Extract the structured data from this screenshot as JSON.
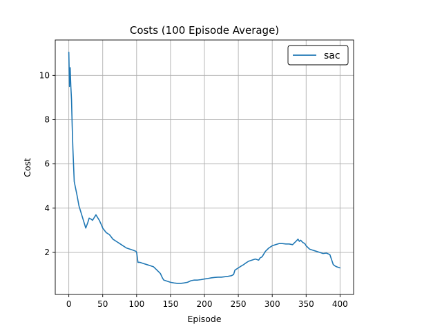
{
  "chart_data": {
    "type": "line",
    "title": "Costs (100 Episode Average)",
    "xlabel": "Episode",
    "ylabel": "Cost",
    "xlim": [
      -20,
      420
    ],
    "ylim": [
      0.1,
      11.6
    ],
    "xticks": [
      0,
      50,
      100,
      150,
      200,
      250,
      300,
      350,
      400
    ],
    "yticks": [
      2,
      4,
      6,
      8,
      10
    ],
    "grid": true,
    "legend_position": "top-right",
    "series": [
      {
        "name": "sac",
        "color": "#1f77b4",
        "x": [
          0,
          1,
          2,
          3,
          4,
          5,
          6,
          8,
          10,
          12,
          15,
          18,
          20,
          23,
          25,
          28,
          30,
          33,
          35,
          38,
          40,
          43,
          45,
          48,
          50,
          55,
          60,
          65,
          70,
          75,
          80,
          85,
          90,
          95,
          99,
          100,
          102,
          105,
          110,
          115,
          120,
          125,
          130,
          135,
          138,
          140,
          145,
          150,
          155,
          160,
          165,
          170,
          175,
          180,
          185,
          190,
          195,
          200,
          205,
          210,
          215,
          220,
          225,
          230,
          235,
          240,
          243,
          245,
          250,
          255,
          258,
          260,
          265,
          270,
          275,
          280,
          282,
          285,
          290,
          295,
          300,
          305,
          310,
          315,
          320,
          325,
          330,
          335,
          338,
          340,
          342,
          345,
          348,
          350,
          355,
          360,
          365,
          370,
          375,
          380,
          385,
          390,
          392,
          395,
          400
        ],
        "y": [
          11.05,
          9.5,
          10.35,
          9.5,
          8.9,
          7.7,
          6.7,
          5.2,
          4.9,
          4.6,
          4.1,
          3.8,
          3.6,
          3.3,
          3.1,
          3.35,
          3.55,
          3.5,
          3.45,
          3.6,
          3.7,
          3.55,
          3.45,
          3.25,
          3.1,
          2.9,
          2.8,
          2.6,
          2.5,
          2.4,
          2.3,
          2.2,
          2.15,
          2.1,
          2.05,
          2.0,
          1.55,
          1.55,
          1.5,
          1.45,
          1.4,
          1.35,
          1.2,
          1.05,
          0.85,
          0.75,
          0.7,
          0.65,
          0.62,
          0.6,
          0.6,
          0.62,
          0.65,
          0.72,
          0.75,
          0.75,
          0.77,
          0.8,
          0.82,
          0.85,
          0.87,
          0.88,
          0.88,
          0.9,
          0.92,
          0.95,
          1.0,
          1.2,
          1.3,
          1.4,
          1.45,
          1.5,
          1.6,
          1.65,
          1.7,
          1.65,
          1.75,
          1.8,
          2.05,
          2.2,
          2.3,
          2.35,
          2.4,
          2.4,
          2.38,
          2.38,
          2.35,
          2.5,
          2.6,
          2.5,
          2.55,
          2.45,
          2.4,
          2.3,
          2.15,
          2.1,
          2.05,
          2.0,
          1.95,
          1.97,
          1.9,
          1.45,
          1.4,
          1.35,
          1.3
        ]
      }
    ]
  }
}
